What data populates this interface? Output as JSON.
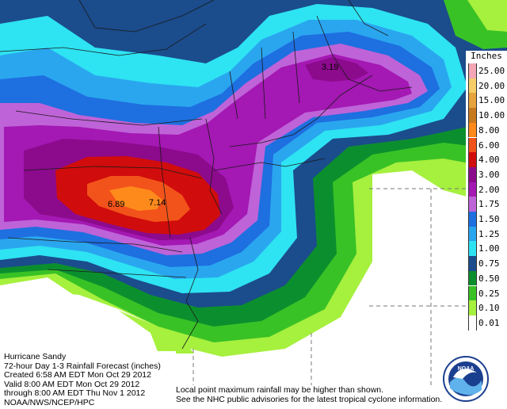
{
  "title_block": {
    "line1": "Hurricane Sandy",
    "line2": "72-hour Day 1-3 Rainfall Forecast (inches)",
    "line3": "Created 6:58 AM EDT Mon Oct 29 2012",
    "line4": "Valid 8:00 AM EDT Mon Oct 29 2012",
    "line5": "through 8:00 AM EDT Thu Nov 1 2012",
    "line6": "NOAA/NWS/NCEP/HPC"
  },
  "disclaimer": {
    "line1": "Local point maximum rainfall may be higher than shown.",
    "line2": "See the NHC public advisories for the latest tropical cyclone information."
  },
  "legend": {
    "title": "Inches",
    "entries": [
      {
        "value": "25.00",
        "color": "#f4a6b4"
      },
      {
        "value": "20.00",
        "color": "#f5ce6a"
      },
      {
        "value": "15.00",
        "color": "#e7a33c"
      },
      {
        "value": "10.00",
        "color": "#c77a1d"
      },
      {
        "value": "8.00",
        "color": "#ff8a1c"
      },
      {
        "value": "6.00",
        "color": "#f2531a"
      },
      {
        "value": "4.00",
        "color": "#d10c0c"
      },
      {
        "value": "3.00",
        "color": "#8c0a8c"
      },
      {
        "value": "2.00",
        "color": "#a418b3"
      },
      {
        "value": "1.75",
        "color": "#bf63d8"
      },
      {
        "value": "1.50",
        "color": "#1e6fe0"
      },
      {
        "value": "1.25",
        "color": "#2aa6ef"
      },
      {
        "value": "1.00",
        "color": "#2ee3f2"
      },
      {
        "value": "0.75",
        "color": "#1b4c8c"
      },
      {
        "value": "0.50",
        "color": "#0b8f2e"
      },
      {
        "value": "0.25",
        "color": "#39c226"
      },
      {
        "value": "0.10",
        "color": "#a6f03e"
      },
      {
        "value": "0.01",
        "color": "#ffffff"
      }
    ]
  },
  "max_labels": [
    {
      "id": "max-maine",
      "text": "3.19"
    },
    {
      "id": "max-wv",
      "text": "6.89"
    },
    {
      "id": "max-md",
      "text": "7.14"
    }
  ],
  "logo": {
    "text": "NOAA"
  }
}
